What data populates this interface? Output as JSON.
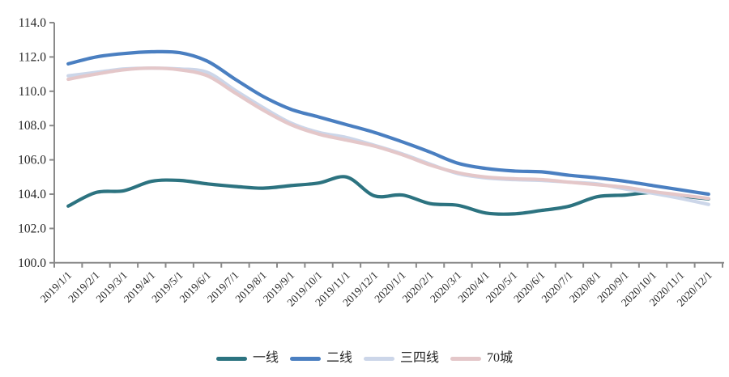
{
  "chart_data": {
    "type": "line",
    "title": "",
    "xlabel": "",
    "ylabel": "",
    "x_labels": [
      "2019/1/1",
      "2019/2/1",
      "2019/3/1",
      "2019/4/1",
      "2019/5/1",
      "2019/6/1",
      "2019/7/1",
      "2019/8/1",
      "2019/9/1",
      "2019/10/1",
      "2019/11/1",
      "2019/12/1",
      "2020/1/1",
      "2020/2/1",
      "2020/3/1",
      "2020/4/1",
      "2020/5/1",
      "2020/6/1",
      "2020/7/1",
      "2020/8/1",
      "2020/9/1",
      "2020/10/1",
      "2020/11/1",
      "2020/12/1"
    ],
    "series": [
      {
        "name": "一线",
        "color": "#2C7380",
        "values": [
          103.3,
          104.1,
          104.2,
          104.75,
          104.8,
          104.6,
          104.45,
          104.35,
          104.5,
          104.65,
          105.0,
          103.9,
          103.95,
          103.45,
          103.35,
          102.9,
          102.85,
          103.05,
          103.3,
          103.85,
          103.95,
          104.1,
          103.9,
          103.72
        ]
      },
      {
        "name": "二线",
        "color": "#4A7FC1",
        "values": [
          111.6,
          112.0,
          112.2,
          112.3,
          112.25,
          111.75,
          110.7,
          109.7,
          108.95,
          108.5,
          108.05,
          107.6,
          107.05,
          106.45,
          105.8,
          105.5,
          105.35,
          105.3,
          105.1,
          104.95,
          104.75,
          104.5,
          104.25,
          104.0
        ]
      },
      {
        "name": "三四线",
        "color": "#CCD6E9",
        "values": [
          110.9,
          111.1,
          111.3,
          111.35,
          111.3,
          111.1,
          110.05,
          109.05,
          108.15,
          107.6,
          107.3,
          106.85,
          106.35,
          105.75,
          105.2,
          104.95,
          104.85,
          104.8,
          104.7,
          104.6,
          104.3,
          104.05,
          103.75,
          103.4
        ]
      },
      {
        "name": "70城",
        "color": "#E4C7C9",
        "values": [
          110.7,
          111.0,
          111.25,
          111.35,
          111.25,
          110.9,
          109.9,
          108.9,
          108.05,
          107.5,
          107.15,
          106.8,
          106.3,
          105.7,
          105.25,
          105.0,
          104.9,
          104.85,
          104.7,
          104.55,
          104.4,
          104.15,
          103.95,
          103.75
        ]
      }
    ],
    "ylim": [
      100.0,
      114.0
    ],
    "y_ticks": [
      100,
      102,
      104,
      106,
      108,
      110,
      112,
      114
    ],
    "y_tick_labels": [
      "100.0",
      "102.0",
      "104.0",
      "106.0",
      "108.0",
      "110.0",
      "112.0",
      "114.0"
    ],
    "legend": [
      "一线",
      "二线",
      "三四线",
      "70城"
    ],
    "legend_position": "bottom",
    "grid": false,
    "axis_color": "#8A8A8A",
    "text_color": "#262626"
  }
}
